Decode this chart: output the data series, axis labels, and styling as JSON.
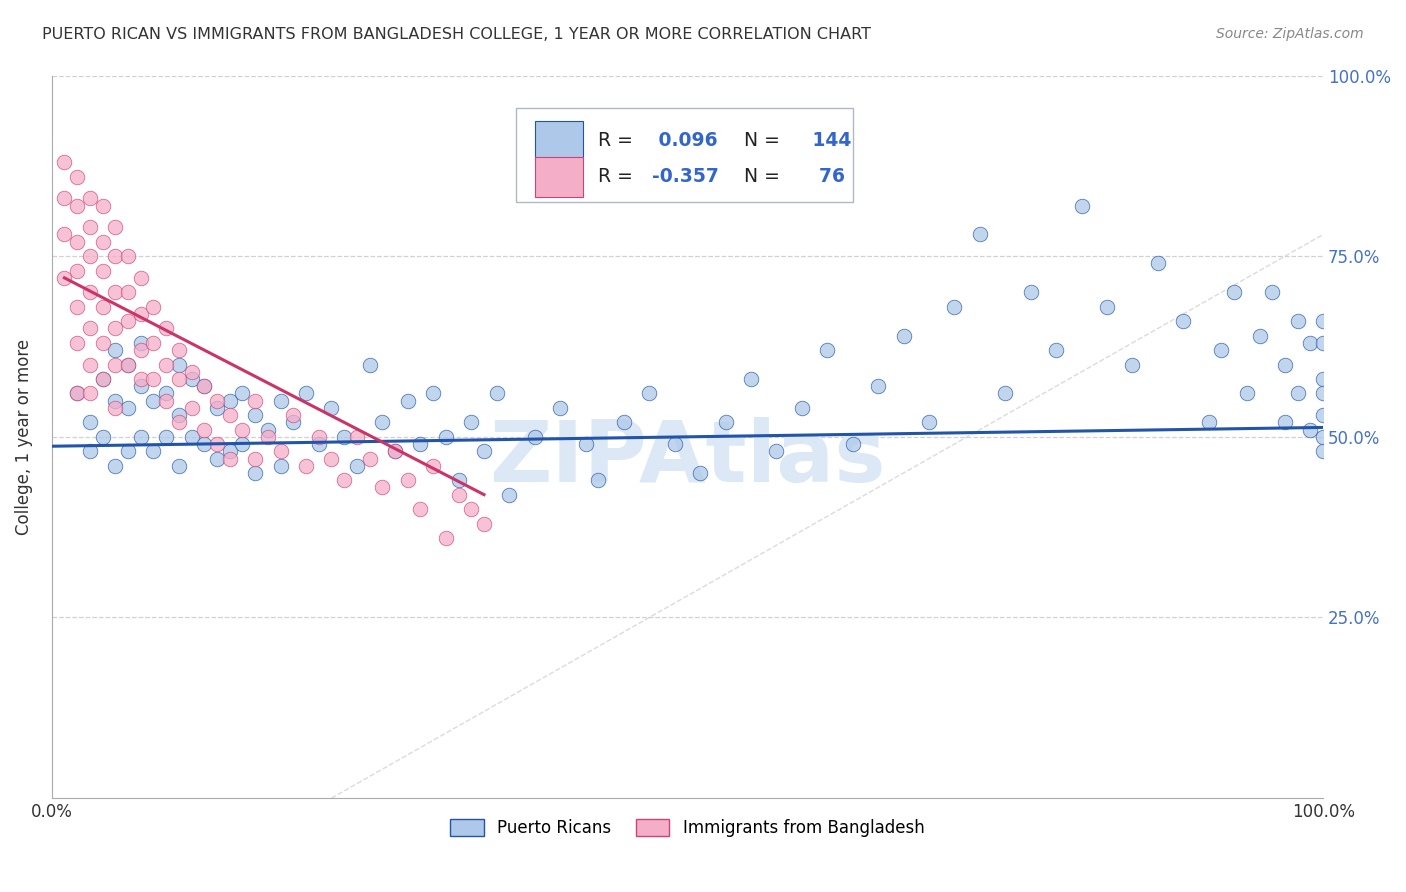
{
  "title": "PUERTO RICAN VS IMMIGRANTS FROM BANGLADESH COLLEGE, 1 YEAR OR MORE CORRELATION CHART",
  "source": "Source: ZipAtlas.com",
  "ylabel": "College, 1 year or more",
  "xmin": 0.0,
  "xmax": 1.0,
  "ymin": 0.0,
  "ymax": 1.0,
  "r_blue": 0.096,
  "n_blue": 144,
  "r_pink": -0.357,
  "n_pink": 76,
  "blue_color": "#adc8e8",
  "pink_color": "#f5aec8",
  "trend_blue": "#2255aa",
  "trend_pink": "#cc3366",
  "diag_color": "#cccccc",
  "watermark": "ZIPAtlas",
  "legend_label_blue": "Puerto Ricans",
  "legend_label_pink": "Immigrants from Bangladesh",
  "blue_scatter_x": [
    0.02,
    0.03,
    0.03,
    0.04,
    0.04,
    0.05,
    0.05,
    0.05,
    0.06,
    0.06,
    0.06,
    0.07,
    0.07,
    0.07,
    0.08,
    0.08,
    0.09,
    0.09,
    0.1,
    0.1,
    0.1,
    0.11,
    0.11,
    0.12,
    0.12,
    0.13,
    0.13,
    0.14,
    0.14,
    0.15,
    0.15,
    0.16,
    0.16,
    0.17,
    0.18,
    0.18,
    0.19,
    0.2,
    0.21,
    0.22,
    0.23,
    0.24,
    0.25,
    0.26,
    0.27,
    0.28,
    0.29,
    0.3,
    0.31,
    0.32,
    0.33,
    0.34,
    0.35,
    0.36,
    0.38,
    0.4,
    0.42,
    0.43,
    0.45,
    0.47,
    0.49,
    0.51,
    0.53,
    0.55,
    0.57,
    0.59,
    0.61,
    0.63,
    0.65,
    0.67,
    0.69,
    0.71,
    0.73,
    0.75,
    0.77,
    0.79,
    0.81,
    0.83,
    0.85,
    0.87,
    0.89,
    0.91,
    0.92,
    0.93,
    0.94,
    0.95,
    0.96,
    0.97,
    0.97,
    0.98,
    0.98,
    0.99,
    0.99,
    1.0,
    1.0,
    1.0,
    1.0,
    1.0,
    1.0,
    1.0
  ],
  "blue_scatter_y": [
    0.56,
    0.52,
    0.48,
    0.58,
    0.5,
    0.62,
    0.55,
    0.46,
    0.6,
    0.54,
    0.48,
    0.63,
    0.57,
    0.5,
    0.55,
    0.48,
    0.56,
    0.5,
    0.6,
    0.53,
    0.46,
    0.58,
    0.5,
    0.57,
    0.49,
    0.54,
    0.47,
    0.55,
    0.48,
    0.56,
    0.49,
    0.53,
    0.45,
    0.51,
    0.55,
    0.46,
    0.52,
    0.56,
    0.49,
    0.54,
    0.5,
    0.46,
    0.6,
    0.52,
    0.48,
    0.55,
    0.49,
    0.56,
    0.5,
    0.44,
    0.52,
    0.48,
    0.56,
    0.42,
    0.5,
    0.54,
    0.49,
    0.44,
    0.52,
    0.56,
    0.49,
    0.45,
    0.52,
    0.58,
    0.48,
    0.54,
    0.62,
    0.49,
    0.57,
    0.64,
    0.52,
    0.68,
    0.78,
    0.56,
    0.7,
    0.62,
    0.82,
    0.68,
    0.6,
    0.74,
    0.66,
    0.52,
    0.62,
    0.7,
    0.56,
    0.64,
    0.7,
    0.52,
    0.6,
    0.66,
    0.56,
    0.51,
    0.63,
    0.53,
    0.58,
    0.66,
    0.48,
    0.56,
    0.63,
    0.5
  ],
  "pink_scatter_x": [
    0.01,
    0.01,
    0.01,
    0.01,
    0.02,
    0.02,
    0.02,
    0.02,
    0.02,
    0.02,
    0.02,
    0.03,
    0.03,
    0.03,
    0.03,
    0.03,
    0.03,
    0.03,
    0.04,
    0.04,
    0.04,
    0.04,
    0.04,
    0.04,
    0.05,
    0.05,
    0.05,
    0.05,
    0.05,
    0.05,
    0.06,
    0.06,
    0.06,
    0.06,
    0.07,
    0.07,
    0.07,
    0.07,
    0.08,
    0.08,
    0.08,
    0.09,
    0.09,
    0.09,
    0.1,
    0.1,
    0.1,
    0.11,
    0.11,
    0.12,
    0.12,
    0.13,
    0.13,
    0.14,
    0.14,
    0.15,
    0.16,
    0.16,
    0.17,
    0.18,
    0.19,
    0.2,
    0.21,
    0.22,
    0.23,
    0.24,
    0.25,
    0.26,
    0.27,
    0.28,
    0.29,
    0.3,
    0.31,
    0.32,
    0.33,
    0.34
  ],
  "pink_scatter_y": [
    0.88,
    0.83,
    0.78,
    0.72,
    0.86,
    0.82,
    0.77,
    0.73,
    0.68,
    0.63,
    0.56,
    0.83,
    0.79,
    0.75,
    0.7,
    0.65,
    0.6,
    0.56,
    0.82,
    0.77,
    0.73,
    0.68,
    0.63,
    0.58,
    0.79,
    0.75,
    0.7,
    0.65,
    0.6,
    0.54,
    0.75,
    0.7,
    0.66,
    0.6,
    0.72,
    0.67,
    0.62,
    0.58,
    0.68,
    0.63,
    0.58,
    0.65,
    0.6,
    0.55,
    0.62,
    0.58,
    0.52,
    0.59,
    0.54,
    0.57,
    0.51,
    0.55,
    0.49,
    0.53,
    0.47,
    0.51,
    0.55,
    0.47,
    0.5,
    0.48,
    0.53,
    0.46,
    0.5,
    0.47,
    0.44,
    0.5,
    0.47,
    0.43,
    0.48,
    0.44,
    0.4,
    0.46,
    0.36,
    0.42,
    0.4,
    0.38
  ],
  "blue_trend_x": [
    0.0,
    1.0
  ],
  "blue_trend_y": [
    0.487,
    0.513
  ],
  "pink_trend_x": [
    0.01,
    0.34
  ],
  "pink_trend_y": [
    0.72,
    0.42
  ]
}
